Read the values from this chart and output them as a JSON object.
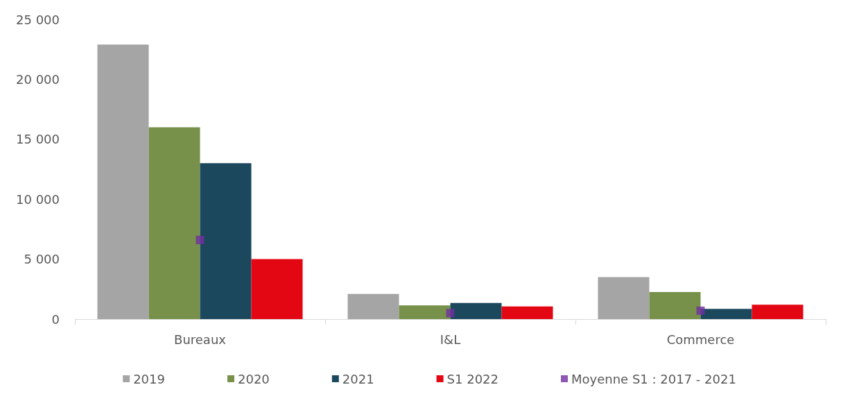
{
  "chart_data": {
    "type": "bar",
    "categories": [
      "Bureaux",
      "I&L",
      "Commerce"
    ],
    "series": [
      {
        "name": "2019",
        "color": "#a5a5a5",
        "values": [
          22900,
          2100,
          3500
        ]
      },
      {
        "name": "2020",
        "color": "#77904a",
        "values": [
          16000,
          1150,
          2250
        ]
      },
      {
        "name": "2021",
        "color": "#1c485e",
        "values": [
          13000,
          1350,
          850
        ]
      },
      {
        "name": "S1 2022",
        "color": "#e30613",
        "values": [
          5000,
          1050,
          1200
        ]
      },
      {
        "name": "Moyenne S1 : 2017 - 2021",
        "type": "scatter",
        "color": "#7030a0",
        "marker": "square",
        "values": [
          6600,
          500,
          700
        ]
      }
    ],
    "ylim": [
      0,
      25000
    ],
    "yticks": [
      {
        "value": 0,
        "label": "0"
      },
      {
        "value": 5000,
        "label": "5 000"
      },
      {
        "value": 10000,
        "label": "10 000"
      },
      {
        "value": 15000,
        "label": "15 000"
      },
      {
        "value": 20000,
        "label": "20 000"
      },
      {
        "value": 25000,
        "label": "25 000"
      }
    ],
    "grid": false,
    "legend": "bottom"
  }
}
